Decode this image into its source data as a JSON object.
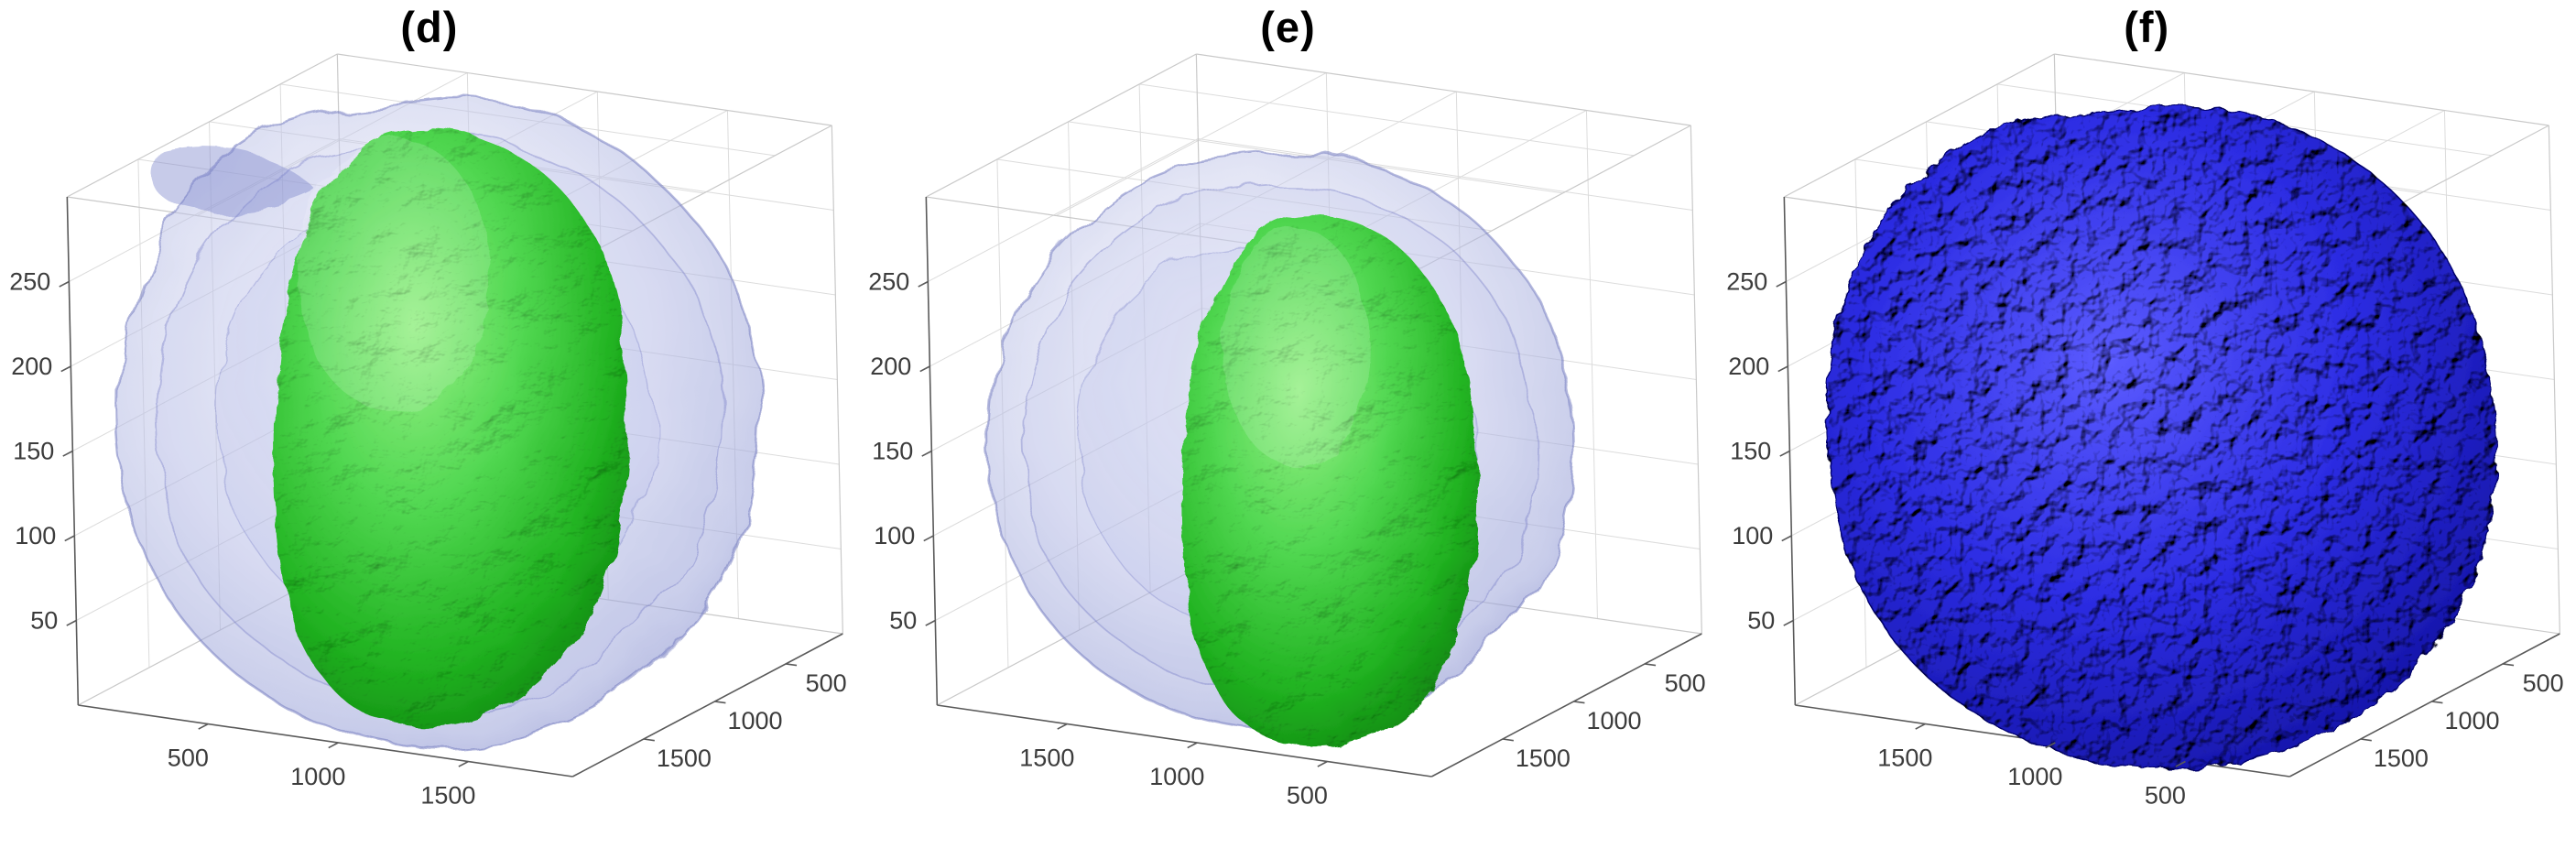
{
  "figure": {
    "background": "#ffffff",
    "axis_color": "#5a5a5a",
    "grid_color": "#dcdcdc",
    "box_edge_color": "#c9c9c9",
    "tick_label_color": "#3c3c3c",
    "panels": [
      {
        "id": "d",
        "title": "(d)",
        "x_tick_labels": [
          "500",
          "1000",
          "1500"
        ],
        "y_tick_labels_near_to_far": [
          "1500",
          "1000",
          "500"
        ],
        "z_tick_labels_bottom_to_top": [
          "50",
          "100",
          "150",
          "200",
          "250"
        ],
        "surfaces": [
          {
            "name": "outer-isosurface",
            "color": "#8a92d4",
            "opacity": 0.3
          },
          {
            "name": "inner-isosurface",
            "color": "#21b321",
            "opacity": 1.0
          }
        ]
      },
      {
        "id": "e",
        "title": "(e)",
        "x_tick_labels": [
          "1500",
          "1000",
          "500"
        ],
        "y_tick_labels_near_to_far": [
          "1500",
          "1000",
          "500"
        ],
        "z_tick_labels_bottom_to_top": [
          "50",
          "100",
          "150",
          "200",
          "250"
        ],
        "surfaces": [
          {
            "name": "outer-isosurface",
            "color": "#8a92d4",
            "opacity": 0.3
          },
          {
            "name": "inner-isosurface",
            "color": "#21b321",
            "opacity": 1.0
          }
        ]
      },
      {
        "id": "f",
        "title": "(f)",
        "x_tick_labels": [
          "1500",
          "1000",
          "500"
        ],
        "y_tick_labels_near_to_far": [
          "1500",
          "1000",
          "500"
        ],
        "z_tick_labels_bottom_to_top": [
          "50",
          "100",
          "150",
          "200",
          "250"
        ],
        "surfaces": [
          {
            "name": "full-isosurface",
            "color": "#1b1bc8",
            "opacity": 1.0
          }
        ]
      }
    ]
  },
  "chart_data": [
    {
      "type": "3d-surface",
      "panel": "(d)",
      "title": "(d)",
      "description": "Translucent blue outer isosurface shell with an opaque, wrinkled green inner sub-volume shown in cut-away view",
      "x_ticks": [
        500,
        1000,
        1500
      ],
      "y_ticks": [
        500,
        1000,
        1500
      ],
      "z_ticks": [
        50,
        100,
        150,
        200,
        250
      ],
      "x_range_est": [
        1,
        1900
      ],
      "y_range_est": [
        1,
        1900
      ],
      "z_range_est": [
        1,
        300
      ],
      "grid": true,
      "legend": "none",
      "series": [
        {
          "name": "outer isosurface",
          "color": "#8a92d4",
          "opacity": 0.3,
          "style": "translucent"
        },
        {
          "name": "inner isosurface",
          "color": "#21b321",
          "opacity": 1.0,
          "style": "opaque wrinkled"
        }
      ]
    },
    {
      "type": "3d-surface",
      "panel": "(e)",
      "title": "(e)",
      "description": "Smaller translucent blue outer isosurface shell with opaque green inner sub-volume, different orientation (x axis reversed)",
      "x_ticks": [
        500,
        1000,
        1500
      ],
      "y_ticks": [
        500,
        1000,
        1500
      ],
      "z_ticks": [
        50,
        100,
        150,
        200,
        250
      ],
      "x_range_est": [
        1,
        1900
      ],
      "y_range_est": [
        1,
        1900
      ],
      "z_range_est": [
        1,
        300
      ],
      "grid": true,
      "legend": "none",
      "series": [
        {
          "name": "outer isosurface",
          "color": "#8a92d4",
          "opacity": 0.3,
          "style": "translucent"
        },
        {
          "name": "inner isosurface",
          "color": "#21b321",
          "opacity": 1.0,
          "style": "opaque wrinkled"
        }
      ]
    },
    {
      "type": "3d-surface",
      "panel": "(f)",
      "title": "(f)",
      "description": "Fully opaque dark blue rough/speckled isosurface filling the axes box",
      "x_ticks": [
        500,
        1000,
        1500
      ],
      "y_ticks": [
        500,
        1000,
        1500
      ],
      "z_ticks": [
        50,
        100,
        150,
        200,
        250
      ],
      "x_range_est": [
        1,
        1900
      ],
      "y_range_est": [
        1,
        1900
      ],
      "z_range_est": [
        1,
        300
      ],
      "grid": true,
      "legend": "none",
      "series": [
        {
          "name": "full isosurface",
          "color": "#1b1bc8",
          "opacity": 1.0,
          "style": "opaque rough"
        }
      ]
    }
  ]
}
